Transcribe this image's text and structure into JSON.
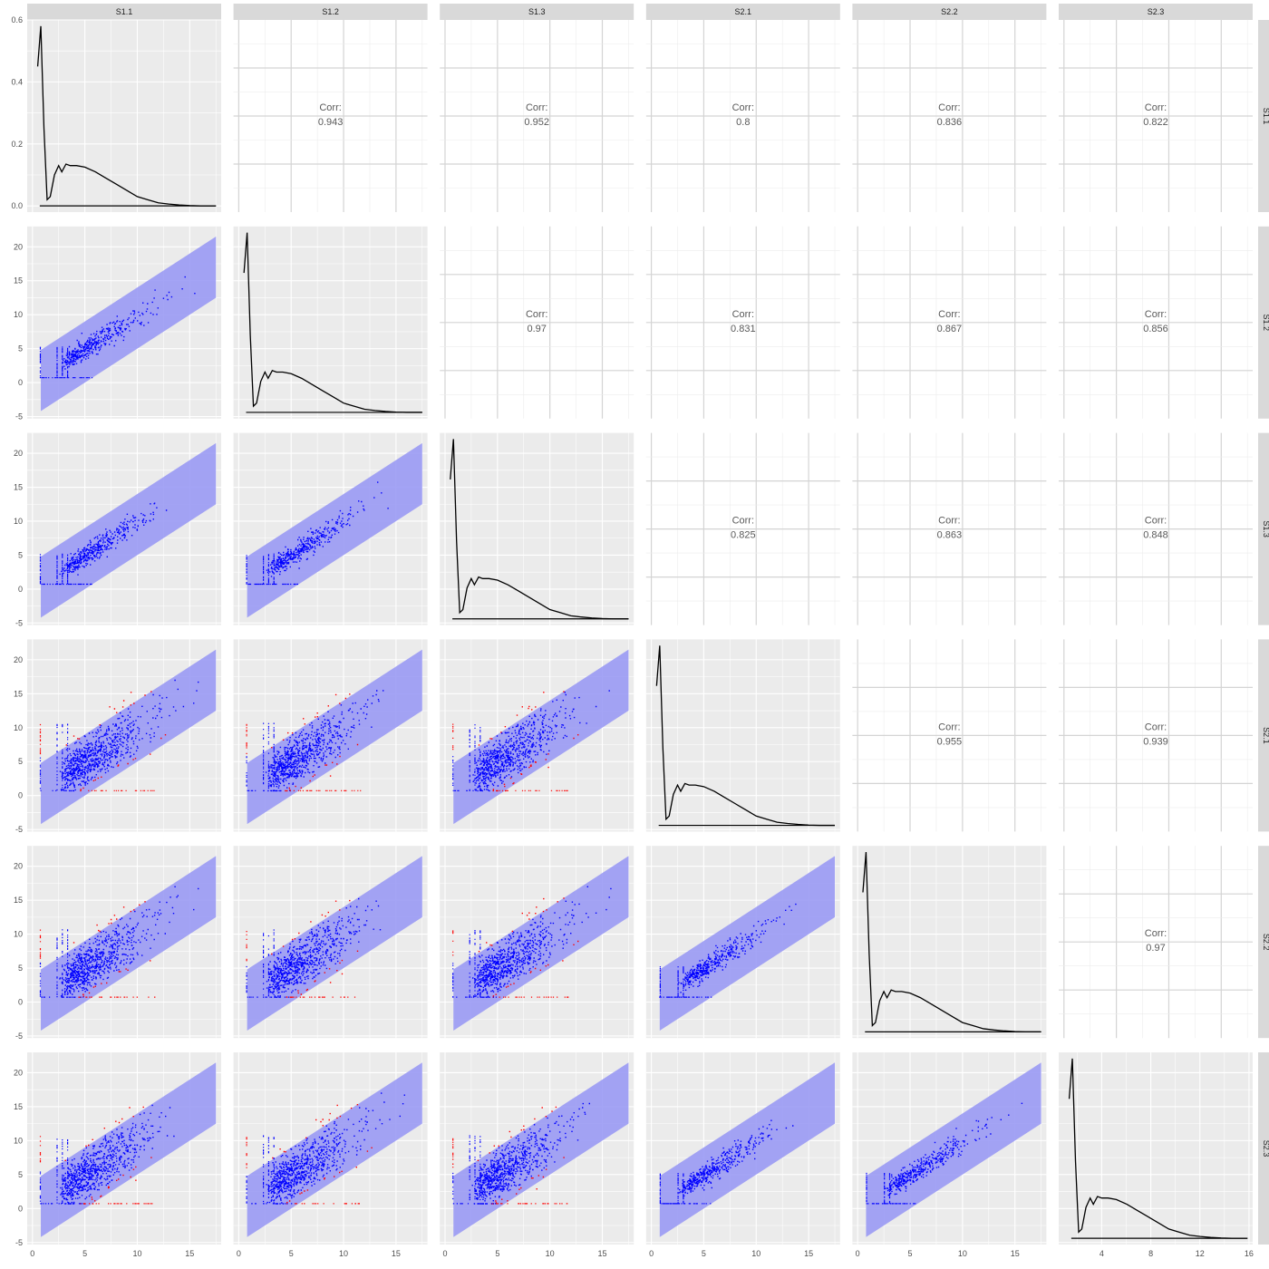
{
  "chart_data": {
    "type": "scatter-matrix",
    "variables": [
      "S1.1",
      "S1.2",
      "S1.3",
      "S2.1",
      "S2.2",
      "S2.3"
    ],
    "corr_label": "Corr:",
    "correlations": [
      {
        "row": "S1.1",
        "col": "S1.2",
        "value": "0.943"
      },
      {
        "row": "S1.1",
        "col": "S1.3",
        "value": "0.952"
      },
      {
        "row": "S1.1",
        "col": "S2.1",
        "value": "0.8"
      },
      {
        "row": "S1.1",
        "col": "S2.2",
        "value": "0.836"
      },
      {
        "row": "S1.1",
        "col": "S2.3",
        "value": "0.822"
      },
      {
        "row": "S1.2",
        "col": "S1.3",
        "value": "0.97"
      },
      {
        "row": "S1.2",
        "col": "S2.1",
        "value": "0.831"
      },
      {
        "row": "S1.2",
        "col": "S2.2",
        "value": "0.867"
      },
      {
        "row": "S1.2",
        "col": "S2.3",
        "value": "0.856"
      },
      {
        "row": "S1.3",
        "col": "S2.1",
        "value": "0.825"
      },
      {
        "row": "S1.3",
        "col": "S2.2",
        "value": "0.863"
      },
      {
        "row": "S1.3",
        "col": "S2.3",
        "value": "0.848"
      },
      {
        "row": "S2.1",
        "col": "S2.2",
        "value": "0.955"
      },
      {
        "row": "S2.1",
        "col": "S2.3",
        "value": "0.939"
      },
      {
        "row": "S2.2",
        "col": "S2.3",
        "value": "0.97"
      }
    ],
    "x_axis": {
      "range": [
        -0.5,
        18
      ],
      "ticks": [
        "0",
        "5",
        "10",
        "15"
      ]
    },
    "x_axis_last": {
      "range": [
        0.5,
        16.3
      ],
      "ticks": [
        "4",
        "8",
        "12",
        "16"
      ]
    },
    "y_axis_density": {
      "range": [
        -0.02,
        0.6
      ],
      "ticks": [
        "0.0",
        "0.2",
        "0.4",
        "0.6"
      ]
    },
    "y_axis_scatter": {
      "range": [
        -5.3,
        23
      ],
      "ticks": [
        "-5",
        "0",
        "5",
        "10",
        "15",
        "20"
      ]
    },
    "ribbon": {
      "x": [
        0.8,
        17.5
      ],
      "lower_offset": -5,
      "upper_offset": 4
    },
    "density_curve": {
      "x": [
        0.5,
        0.8,
        1.1,
        1.4,
        1.7,
        2.1,
        2.5,
        2.8,
        3.2,
        3.6,
        4.2,
        5,
        6,
        7,
        8,
        9,
        10,
        11,
        12,
        13,
        14,
        15,
        16,
        17.5
      ],
      "y": [
        0.45,
        0.58,
        0.25,
        0.02,
        0.03,
        0.1,
        0.13,
        0.11,
        0.135,
        0.13,
        0.13,
        0.125,
        0.11,
        0.09,
        0.07,
        0.05,
        0.03,
        0.02,
        0.01,
        0.006,
        0.003,
        0.001,
        0.0,
        0.0
      ]
    },
    "colors": {
      "panel_bg": "#ebebeb",
      "grid": "#ffffff",
      "strip_bg": "#d9d9d9",
      "ribbon": "#9a9af4",
      "points_inside": "#0000ff",
      "points_outside": "#ff0000",
      "line": "#000000"
    },
    "grid": true,
    "legend": "none"
  }
}
